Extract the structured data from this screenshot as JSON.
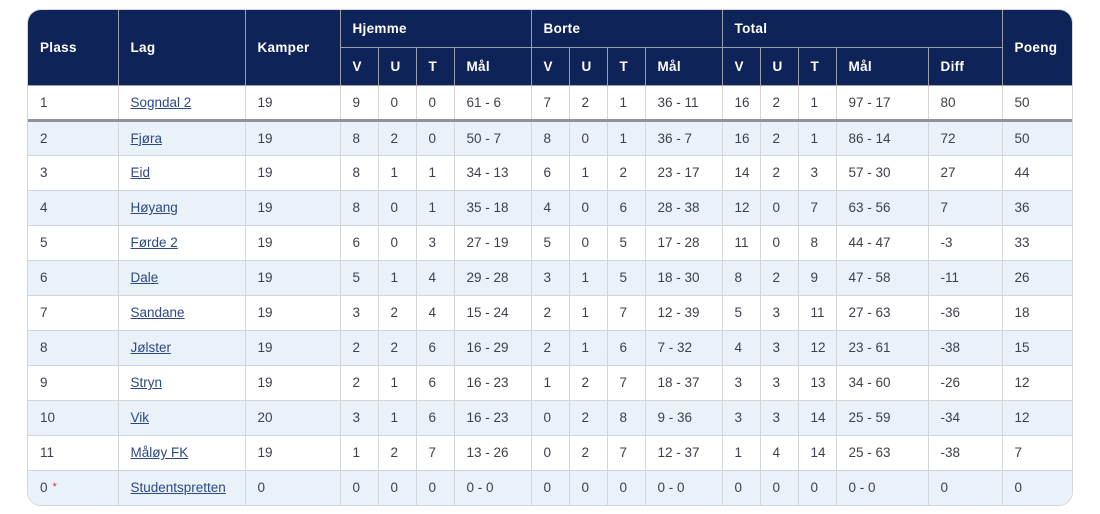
{
  "colors": {
    "header_bg": "#0e2357",
    "header_text": "#ffffff",
    "alt_row_bg": "#e9f1f9",
    "link": "#2d4985",
    "body_text": "#3e414b",
    "asterisk": "#d6334a",
    "promotion_line": "#8f939c"
  },
  "table": {
    "columns": {
      "plass": "Plass",
      "lag": "Lag",
      "kamper": "Kamper",
      "hjemme": "Hjemme",
      "borte": "Borte",
      "total": "Total",
      "v": "V",
      "u": "U",
      "t": "T",
      "maal": "Mål",
      "diff": "Diff",
      "poeng": "Poeng"
    },
    "rows": [
      {
        "plass": "1",
        "note": "",
        "lag": "Sogndal 2",
        "kamper": "19",
        "hjemme": {
          "v": "9",
          "u": "0",
          "t": "0",
          "maal": "61 - 6"
        },
        "borte": {
          "v": "7",
          "u": "2",
          "t": "1",
          "maal": "36 - 11"
        },
        "total": {
          "v": "16",
          "u": "2",
          "t": "1",
          "maal": "97 - 17",
          "diff": "80"
        },
        "poeng": "50"
      },
      {
        "plass": "2",
        "note": "",
        "lag": "Fjøra",
        "kamper": "19",
        "hjemme": {
          "v": "8",
          "u": "2",
          "t": "0",
          "maal": "50 - 7"
        },
        "borte": {
          "v": "8",
          "u": "0",
          "t": "1",
          "maal": "36 - 7"
        },
        "total": {
          "v": "16",
          "u": "2",
          "t": "1",
          "maal": "86 - 14",
          "diff": "72"
        },
        "poeng": "50"
      },
      {
        "plass": "3",
        "note": "",
        "lag": "Eid",
        "kamper": "19",
        "hjemme": {
          "v": "8",
          "u": "1",
          "t": "1",
          "maal": "34 - 13"
        },
        "borte": {
          "v": "6",
          "u": "1",
          "t": "2",
          "maal": "23 - 17"
        },
        "total": {
          "v": "14",
          "u": "2",
          "t": "3",
          "maal": "57 - 30",
          "diff": "27"
        },
        "poeng": "44"
      },
      {
        "plass": "4",
        "note": "",
        "lag": "Høyang",
        "kamper": "19",
        "hjemme": {
          "v": "8",
          "u": "0",
          "t": "1",
          "maal": "35 - 18"
        },
        "borte": {
          "v": "4",
          "u": "0",
          "t": "6",
          "maal": "28 - 38"
        },
        "total": {
          "v": "12",
          "u": "0",
          "t": "7",
          "maal": "63 - 56",
          "diff": "7"
        },
        "poeng": "36"
      },
      {
        "plass": "5",
        "note": "",
        "lag": "Førde 2",
        "kamper": "19",
        "hjemme": {
          "v": "6",
          "u": "0",
          "t": "3",
          "maal": "27 - 19"
        },
        "borte": {
          "v": "5",
          "u": "0",
          "t": "5",
          "maal": "17 - 28"
        },
        "total": {
          "v": "11",
          "u": "0",
          "t": "8",
          "maal": "44 - 47",
          "diff": "-3"
        },
        "poeng": "33"
      },
      {
        "plass": "6",
        "note": "",
        "lag": "Dale",
        "kamper": "19",
        "hjemme": {
          "v": "5",
          "u": "1",
          "t": "4",
          "maal": "29 - 28"
        },
        "borte": {
          "v": "3",
          "u": "1",
          "t": "5",
          "maal": "18 - 30"
        },
        "total": {
          "v": "8",
          "u": "2",
          "t": "9",
          "maal": "47 - 58",
          "diff": "-11"
        },
        "poeng": "26"
      },
      {
        "plass": "7",
        "note": "",
        "lag": "Sandane",
        "kamper": "19",
        "hjemme": {
          "v": "3",
          "u": "2",
          "t": "4",
          "maal": "15 - 24"
        },
        "borte": {
          "v": "2",
          "u": "1",
          "t": "7",
          "maal": "12 - 39"
        },
        "total": {
          "v": "5",
          "u": "3",
          "t": "11",
          "maal": "27 - 63",
          "diff": "-36"
        },
        "poeng": "18"
      },
      {
        "plass": "8",
        "note": "",
        "lag": "Jølster",
        "kamper": "19",
        "hjemme": {
          "v": "2",
          "u": "2",
          "t": "6",
          "maal": "16 - 29"
        },
        "borte": {
          "v": "2",
          "u": "1",
          "t": "6",
          "maal": "7 - 32"
        },
        "total": {
          "v": "4",
          "u": "3",
          "t": "12",
          "maal": "23 - 61",
          "diff": "-38"
        },
        "poeng": "15"
      },
      {
        "plass": "9",
        "note": "",
        "lag": "Stryn",
        "kamper": "19",
        "hjemme": {
          "v": "2",
          "u": "1",
          "t": "6",
          "maal": "16 - 23"
        },
        "borte": {
          "v": "1",
          "u": "2",
          "t": "7",
          "maal": "18 - 37"
        },
        "total": {
          "v": "3",
          "u": "3",
          "t": "13",
          "maal": "34 - 60",
          "diff": "-26"
        },
        "poeng": "12"
      },
      {
        "plass": "10",
        "note": "",
        "lag": "Vik",
        "kamper": "20",
        "hjemme": {
          "v": "3",
          "u": "1",
          "t": "6",
          "maal": "16 - 23"
        },
        "borte": {
          "v": "0",
          "u": "2",
          "t": "8",
          "maal": "9 - 36"
        },
        "total": {
          "v": "3",
          "u": "3",
          "t": "14",
          "maal": "25 - 59",
          "diff": "-34"
        },
        "poeng": "12"
      },
      {
        "plass": "11",
        "note": "",
        "lag": "Måløy FK",
        "kamper": "19",
        "hjemme": {
          "v": "1",
          "u": "2",
          "t": "7",
          "maal": "13 - 26"
        },
        "borte": {
          "v": "0",
          "u": "2",
          "t": "7",
          "maal": "12 - 37"
        },
        "total": {
          "v": "1",
          "u": "4",
          "t": "14",
          "maal": "25 - 63",
          "diff": "-38"
        },
        "poeng": "7"
      },
      {
        "plass": "0",
        "note": "*",
        "lag": "Studentspretten",
        "kamper": "0",
        "hjemme": {
          "v": "0",
          "u": "0",
          "t": "0",
          "maal": "0 - 0"
        },
        "borte": {
          "v": "0",
          "u": "0",
          "t": "0",
          "maal": "0 - 0"
        },
        "total": {
          "v": "0",
          "u": "0",
          "t": "0",
          "maal": "0 - 0",
          "diff": "0"
        },
        "poeng": "0"
      }
    ]
  }
}
